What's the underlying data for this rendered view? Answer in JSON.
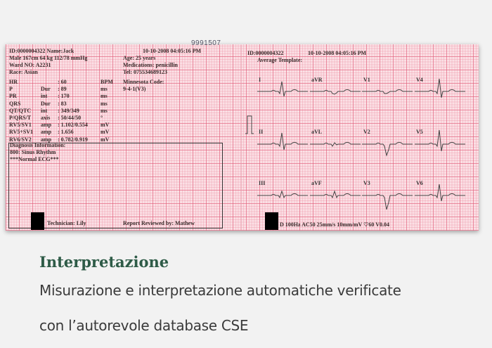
{
  "serial_number": "9991507",
  "left_panel": {
    "header": [
      "ID:0000004322  Name:Jack",
      "Male 167cm 64 kg 112/78 mmHg",
      "Ward NO:  A2231",
      "Race:  Asian"
    ],
    "datetime": "10-10-2008   04:05:16 PM",
    "patient_right": [
      "Age:  25   years",
      "Medications:  penicillin",
      "Tel:  075534689123"
    ],
    "measurements": [
      {
        "name": "HR",
        "type": "",
        "value": ": 60",
        "unit": "BPM"
      },
      {
        "name": "P",
        "type": "Dur",
        "value": ": 89",
        "unit": "ms"
      },
      {
        "name": "PR",
        "type": "int",
        "value": ": 170",
        "unit": "ms"
      },
      {
        "name": "QRS",
        "type": "Dur",
        "value": ": 83",
        "unit": "ms"
      },
      {
        "name": "QT/QTC",
        "type": "int",
        "value": ": 349/349",
        "unit": "ms"
      },
      {
        "name": "P/QRS/T",
        "type": "axis",
        "value": ": 50/44/50",
        "unit": "°"
      },
      {
        "name": "RV5/SV1",
        "type": "amp",
        "value": ": 1.102/0.554",
        "unit": "mV"
      },
      {
        "name": "RV5+SV1",
        "type": "amp",
        "value": ": 1.656",
        "unit": "mV"
      },
      {
        "name": "RV6/SV2",
        "type": "amp",
        "value": ": 0.782/0.919",
        "unit": "mV"
      }
    ],
    "minnesota_label": "Minnesota Code:",
    "minnesota_value": "9-4-1(V3)",
    "diagnosis": [
      "Diagnosis Information:",
      "800: Sinus Rhythm",
      "***Normal ECG***"
    ],
    "technician": "Technician:  Lily",
    "reviewed": "Report  Reviewed  by:  Mathew"
  },
  "right_panel": {
    "header_id": "ID:0000004322",
    "header_datetime": "10-10-2008   04:05:16  PM",
    "template_label": "Average  Template:",
    "leads": [
      "I",
      "aVR",
      "V1",
      "V4",
      "II",
      "aVL",
      "V2",
      "V5",
      "III",
      "aVF",
      "V3",
      "V6"
    ],
    "footer": "D  100Hz  AC50    25mm/s    10mm/mV    ♡60      V0.04"
  },
  "caption": {
    "title": "Interpretazione",
    "line1": "Misurazione e interpretazione automatiche verificate",
    "line2": "con l’autorevole database CSE"
  }
}
